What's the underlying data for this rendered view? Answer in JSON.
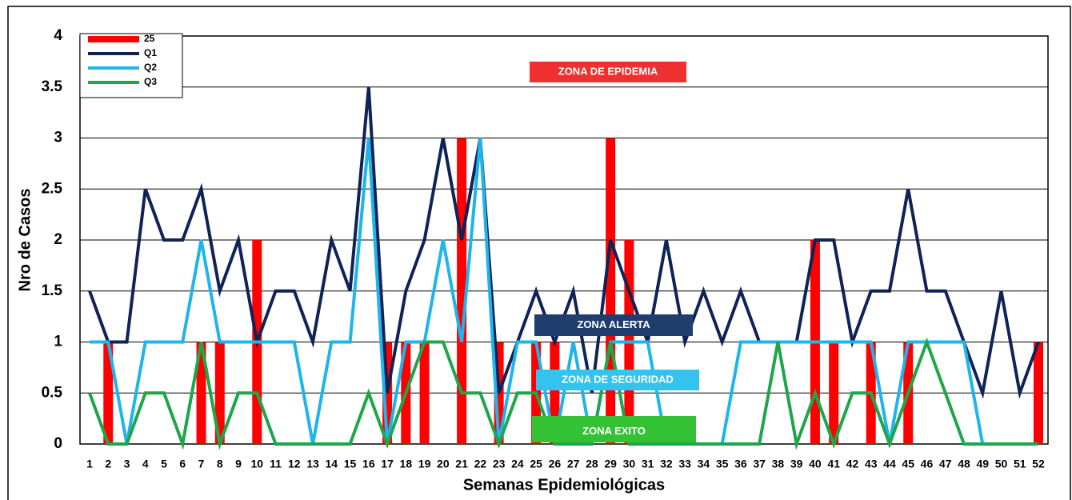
{
  "chart_data": {
    "type": "combo",
    "y_label": "Nro de Casos",
    "x_label": "Semanas Epidemiológicas",
    "categories": [
      "1",
      "2",
      "3",
      "4",
      "5",
      "6",
      "7",
      "8",
      "9",
      "10",
      "11",
      "12",
      "13",
      "14",
      "15",
      "16",
      "17",
      "18",
      "19",
      "20",
      "21",
      "22",
      "23",
      "24",
      "25",
      "26",
      "27",
      "28",
      "29",
      "30",
      "31",
      "32",
      "33",
      "34",
      "35",
      "36",
      "37",
      "38",
      "39",
      "40",
      "41",
      "42",
      "43",
      "44",
      "45",
      "46",
      "47",
      "48",
      "49",
      "50",
      "51",
      "52"
    ],
    "ylim": [
      0,
      4
    ],
    "yticks": [
      0,
      0.5,
      1,
      1.5,
      2,
      2.5,
      3,
      3.5,
      4
    ],
    "grid": true,
    "legend": "top-left",
    "series": [
      {
        "name": "25",
        "type": "bar",
        "color": "#ff0000",
        "values": [
          0,
          1,
          0,
          0,
          0,
          0,
          1,
          1,
          0,
          2,
          0,
          0,
          0,
          0,
          0,
          0,
          1,
          1,
          1,
          0,
          3,
          0,
          1,
          0,
          1,
          1,
          0,
          0,
          3,
          2,
          0,
          0,
          0,
          0,
          0,
          0,
          0,
          0,
          0,
          2,
          1,
          0,
          1,
          0,
          1,
          0,
          0,
          0,
          0,
          0,
          0,
          1
        ]
      },
      {
        "name": "Q1",
        "type": "line",
        "color": "#0f2357",
        "values": [
          1.5,
          1,
          1,
          2.5,
          2,
          2,
          2.5,
          1.5,
          2,
          1,
          1.5,
          1.5,
          1,
          2,
          1.5,
          3.5,
          0.5,
          1.5,
          2,
          3,
          2,
          3,
          0.5,
          1,
          1.5,
          1,
          1.5,
          0.5,
          2,
          1.5,
          1,
          2,
          1,
          1.5,
          1,
          1.5,
          1,
          1,
          1,
          2,
          2,
          1,
          1.5,
          1.5,
          2.5,
          1.5,
          1.5,
          1,
          0.5,
          1.5,
          0.5,
          1
        ]
      },
      {
        "name": "Q2",
        "type": "line",
        "color": "#1eb4ec",
        "values": [
          1,
          1,
          0,
          1,
          1,
          1,
          2,
          1,
          1,
          1,
          1,
          1,
          0,
          1,
          1,
          3,
          0,
          1,
          1,
          2,
          1,
          3,
          0,
          1,
          1,
          0,
          1,
          0,
          1,
          1,
          1,
          0,
          0,
          0,
          0,
          1,
          1,
          1,
          1,
          1,
          1,
          1,
          1,
          0,
          1,
          1,
          1,
          1,
          0,
          0,
          0,
          0
        ]
      },
      {
        "name": "Q3",
        "type": "line",
        "color": "#1ea64a",
        "values": [
          0.5,
          0,
          0,
          0.5,
          0.5,
          0,
          1,
          0,
          0.5,
          0.5,
          0,
          0,
          0,
          0,
          0,
          0.5,
          0,
          0.5,
          1,
          1,
          0.5,
          0.5,
          0,
          0.5,
          0.5,
          0,
          0,
          0,
          1,
          0,
          0,
          0,
          0,
          0,
          0,
          0,
          0,
          1,
          0,
          0.5,
          0,
          0.5,
          0.5,
          0,
          0.5,
          1,
          0.5,
          0,
          0,
          0,
          0,
          0
        ]
      }
    ],
    "annotations": [
      {
        "text": "ZONA DE EPIDEMIA",
        "color": "#ee3030"
      },
      {
        "text": "ZONA  ALERTA",
        "color": "#1f3e6e"
      },
      {
        "text": "ZONA DE SEGURIDAD",
        "color": "#33c3ee"
      },
      {
        "text": "ZONA  EXITO",
        "color": "#33c233"
      }
    ]
  }
}
